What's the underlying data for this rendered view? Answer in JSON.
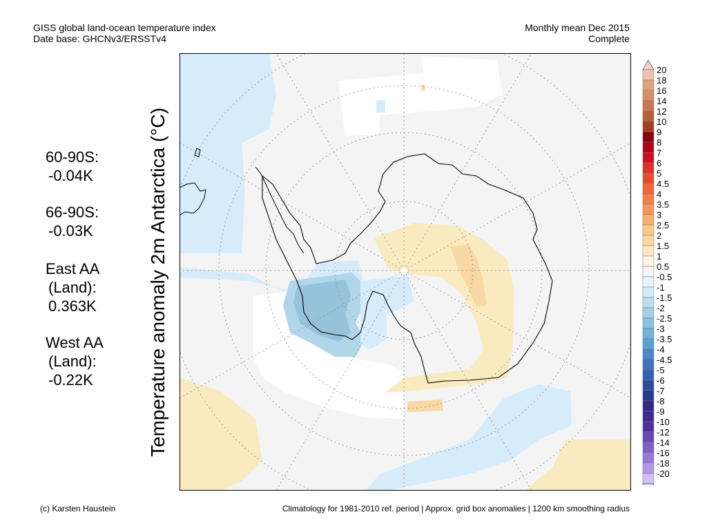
{
  "header": {
    "title_line1": "GISS global land-ocean temperature index",
    "title_line2": "Date base: GHCNv3/ERSSTv4",
    "period_line1": "Monthly mean Dec 2015",
    "period_line2": "Complete"
  },
  "y_axis_label": "Temperature anomaly 2m Antarctica (°C)",
  "stats": [
    {
      "label": "60-90S:",
      "value": "-0.04K"
    },
    {
      "label": "66-90S:",
      "value": "-0.03K"
    },
    {
      "label": "East AA",
      "label2": "(Land):",
      "value": "0.363K"
    },
    {
      "label": "West AA",
      "label2": "(Land):",
      "value": "-0.22K"
    }
  ],
  "footer": {
    "credit": "(c) Karsten Haustein",
    "note": "Climatology for 1981-2010 ref. period | Approx. grid box anomalies | 1200 km smoothing radius"
  },
  "colorbar": {
    "labels": [
      "20",
      "18",
      "16",
      "14",
      "12",
      "10",
      "9",
      "8",
      "7",
      "6",
      "5",
      "4.5",
      "4",
      "3.5",
      "3",
      "2.5",
      "2",
      "1.5",
      "1",
      "0.5",
      "-0.5",
      "-1",
      "-1.5",
      "-2",
      "-2.5",
      "-3",
      "-3.5",
      "-4",
      "-4.5",
      "-5",
      "-6",
      "-7",
      "-8",
      "-9",
      "-10",
      "-12",
      "-14",
      "-16",
      "-18",
      "-20"
    ],
    "colors": [
      "#f0c0b0",
      "#e2a280",
      "#d68e68",
      "#c87850",
      "#b86038",
      "#a24020",
      "#8a0010",
      "#b00018",
      "#d01020",
      "#e03028",
      "#ea4a30",
      "#f06838",
      "#f48048",
      "#f89858",
      "#fab070",
      "#fcc888",
      "#fcd8a0",
      "#fee8c0",
      "#fef4e0",
      "#f5f5f5",
      "#e8f4fc",
      "#d4eaf8",
      "#bcdcf0",
      "#a4cfe8",
      "#8cc0e0",
      "#74b0d8",
      "#5ca0d0",
      "#4888c8",
      "#3e74bc",
      "#3460b0",
      "#2c4ca0",
      "#283a90",
      "#302a88",
      "#402890",
      "#5030a0",
      "#6848b8",
      "#8060c8",
      "#9878d8",
      "#b098e8",
      "#ccc0f4"
    ],
    "end_colors": {
      "top": "#f6d2c4",
      "bottom": "#dcd4fa"
    }
  },
  "map_colors": {
    "ocean_background": "#f4f4f4",
    "anomaly_light_blue": "#d6ecfa",
    "anomaly_mid_blue": "#b0d6ea",
    "anomaly_dark_blue": "#96c2da",
    "anomaly_pale_yellow": "#faeac0",
    "anomaly_orange": "#f8d8a4",
    "no_data": "#ffffff",
    "coast": "#000000",
    "grid": "#999999"
  }
}
